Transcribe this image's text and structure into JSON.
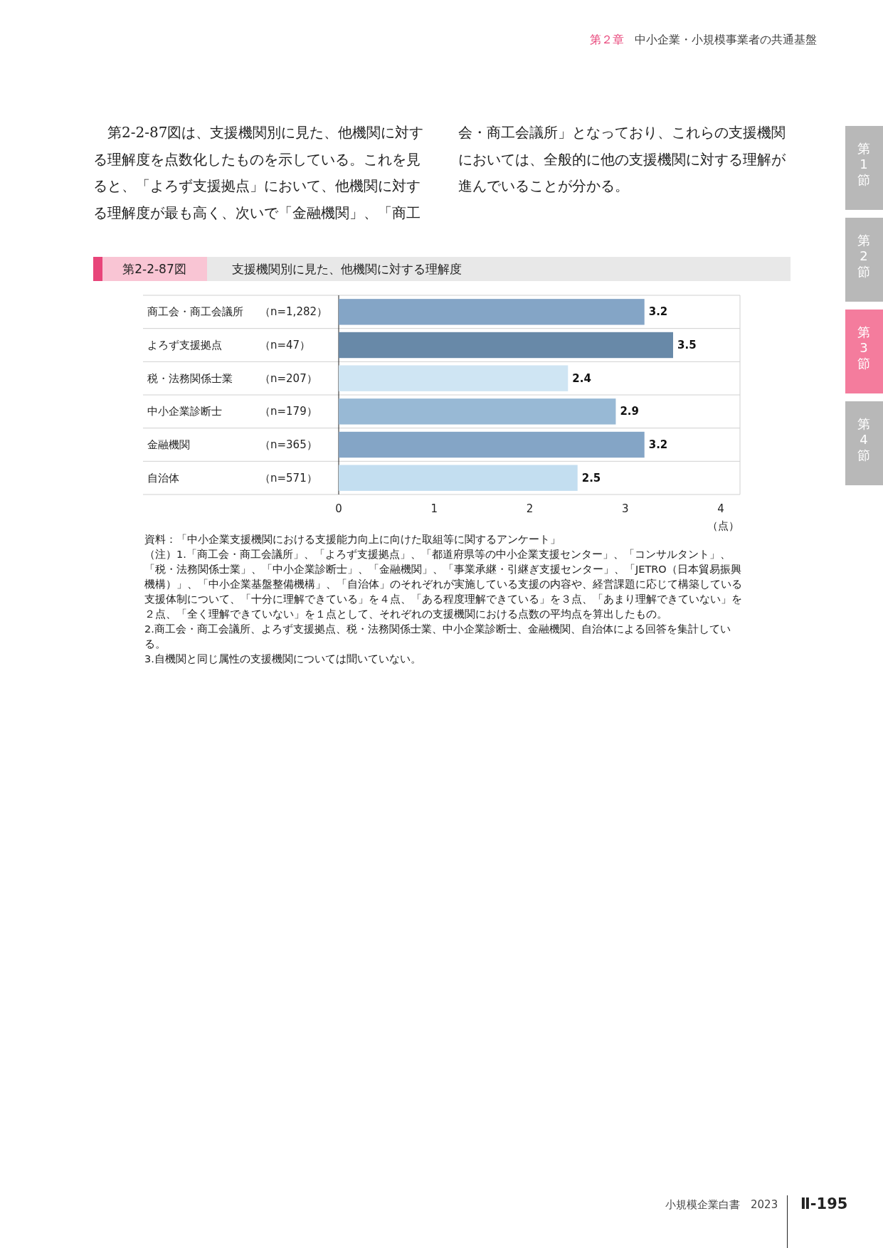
{
  "chart_data": {
    "type": "bar",
    "orientation": "horizontal",
    "subtitle": "第2-2-87図",
    "title": "支援機関別に見た、他機関に対する理解度",
    "xlabel": "（点）",
    "categories": [
      "商工会・商工会議所 （n=1,282）",
      "よろず支援拠点 （n=47）",
      "税・法務関係士業 （n=207）",
      "中小企業診断士 （n=179）",
      "金融機関 （n=365）",
      "自治体 （n=571）"
    ],
    "values": [
      3.2,
      3.5,
      2.4,
      2.9,
      3.2,
      2.5
    ],
    "colors": [
      "#84a5c6",
      "#6889a8",
      "#cfe5f3",
      "#98b9d5",
      "#84a5c6",
      "#c3def0"
    ],
    "xlim": [
      0,
      4.2
    ],
    "xticks": [
      0,
      1,
      2,
      3,
      4
    ],
    "data_labels": true,
    "annotations": [
      "第２章",
      "中小企業・小規模事業者の共通基盤",
      "第2-2-87図は、支援機関別に見た、他機関に対する理解度を点数化したものを示している。これを見ると、「よろず支援拠点」において、他機関に対する理解度が最も高く、次いで「金融機関」、「商工会・商工会議所」となっており、これらの支援機関においては、全般的に他の支援機関に対する理解が進んでいることが分かる。",
      "第1節",
      "第2節",
      "第3節",
      "第4節",
      "資料：「中小企業支援機関における支援能力向上に向けた取組等に関するアンケート」",
      "（注）1.「商工会・商工会議所」、「よろず支援拠点」、「都道府県等の中小企業支援センター」、「コンサルタント」、「税・法務関係士業」、「中小企業診断士」、「金融機関」、「事業承継・引継ぎ支援センター」、「JETRO（日本貿易振興機構）」、「中小企業基盤整備機構」、「自治体」のそれぞれが実施している支援の内容や、経営課題に応じて構築している支援体制について、「十分に理解できている」を４点、「ある程度理解できている」を３点、「あまり理解できていない」を２点、「全く理解できていない」を１点として、それぞれの支援機関における点数の平均点を算出したもの。",
      "2.商工会・商工会議所、よろず支援拠点、税・法務関係士業、中小企業診断士、金融機関、自治体による回答を集計している。",
      "3.自機関と同じ属性の支援機関については聞いていない。",
      "小規模企業白書　2023",
      "Ⅱ-195"
    ]
  }
}
